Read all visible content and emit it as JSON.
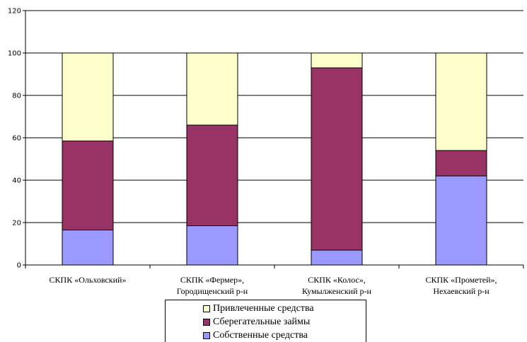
{
  "chart_data": {
    "type": "bar",
    "stacked": true,
    "categories": [
      [
        "СКПК «Ольховский»"
      ],
      [
        "СКПК «Фермер»,",
        "Городищенский р-н"
      ],
      [
        "СКПК «Колос»,",
        "Кумылженский р-н"
      ],
      [
        "СКПК «Прометей»,",
        "Нехаевский р-н"
      ]
    ],
    "series": [
      {
        "name": "Собственные средства",
        "color": "#9999FF",
        "values": [
          16.5,
          18.5,
          7,
          42
        ]
      },
      {
        "name": "Сберегательные займы",
        "color": "#993366",
        "values": [
          42,
          47.5,
          86,
          12
        ]
      },
      {
        "name": "Привлеченные средства",
        "color": "#FFFFCC",
        "values": [
          41.5,
          34,
          7,
          46
        ]
      }
    ],
    "ylim": [
      0,
      120
    ],
    "yticks": [
      0,
      20,
      40,
      60,
      80,
      100,
      120
    ],
    "grid": true,
    "legend_position": "bottom",
    "title": "",
    "xlabel": "",
    "ylabel": ""
  },
  "legend": {
    "items": [
      {
        "label": "Привлеченные средства",
        "color": "#FFFFCC"
      },
      {
        "label": "Сберегательные займы",
        "color": "#993366"
      },
      {
        "label": "Собственные средства",
        "color": "#9999FF"
      }
    ]
  }
}
